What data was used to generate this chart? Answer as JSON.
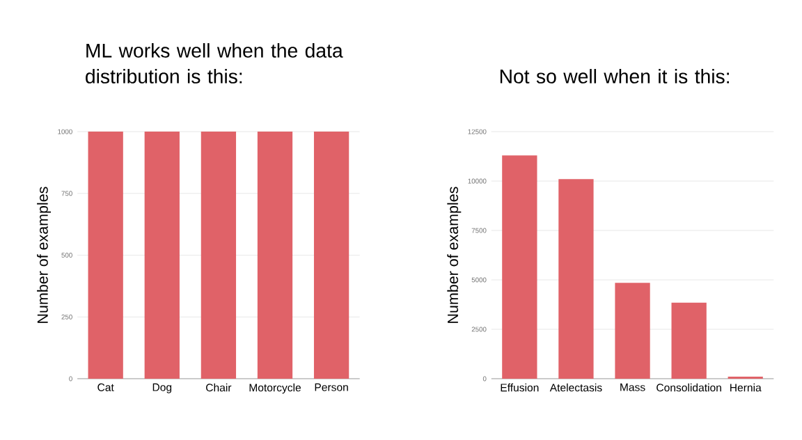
{
  "chart_data": [
    {
      "type": "bar",
      "title": "ML works well when the data distribution is this:",
      "ylabel": "Number of examples",
      "categories": [
        "Cat",
        "Dog",
        "Chair",
        "Motorcycle",
        "Person"
      ],
      "values": [
        1000,
        1000,
        1000,
        1000,
        1000
      ],
      "color": "#e06268",
      "ylim": [
        0,
        1000
      ],
      "yticks": [
        0,
        250,
        500,
        750,
        1000
      ],
      "grid": "y"
    },
    {
      "type": "bar",
      "title": "Not so well when it is this:",
      "ylabel": "Number of examples",
      "categories": [
        "Effusion",
        "Atelectasis",
        "Mass",
        "Consolidation",
        "Hernia"
      ],
      "values": [
        11300,
        10100,
        4850,
        3850,
        100
      ],
      "color": "#e06268",
      "ylim": [
        0,
        12500
      ],
      "yticks": [
        0,
        2500,
        5000,
        7500,
        10000,
        12500
      ],
      "grid": "y"
    }
  ]
}
